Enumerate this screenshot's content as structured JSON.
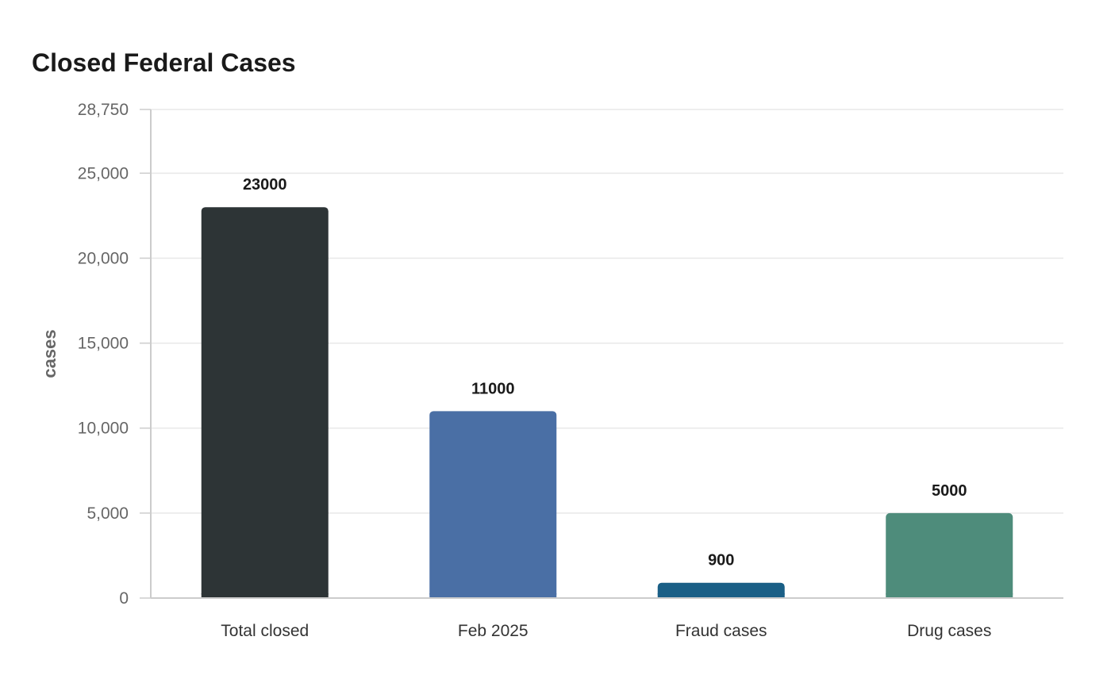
{
  "chart_data": {
    "type": "bar",
    "title": "Closed Federal Cases",
    "xlabel": "",
    "ylabel": "cases",
    "categories": [
      "Total closed",
      "Feb 2025",
      "Fraud cases",
      "Drug cases"
    ],
    "values": [
      23000,
      11000,
      900,
      5000
    ],
    "value_labels": [
      "23000",
      "11000",
      "900",
      "5000"
    ],
    "colors": [
      "#2d3436",
      "#4a6fa5",
      "#1a5f86",
      "#4e8c7b"
    ],
    "ylim": [
      0,
      28750
    ],
    "yticks": [
      0,
      5000,
      10000,
      15000,
      20000,
      25000,
      28750
    ],
    "ytick_labels": [
      "0",
      "5,000",
      "10,000",
      "15,000",
      "20,000",
      "25,000",
      "28,750"
    ],
    "grid": true,
    "legend": "none"
  }
}
